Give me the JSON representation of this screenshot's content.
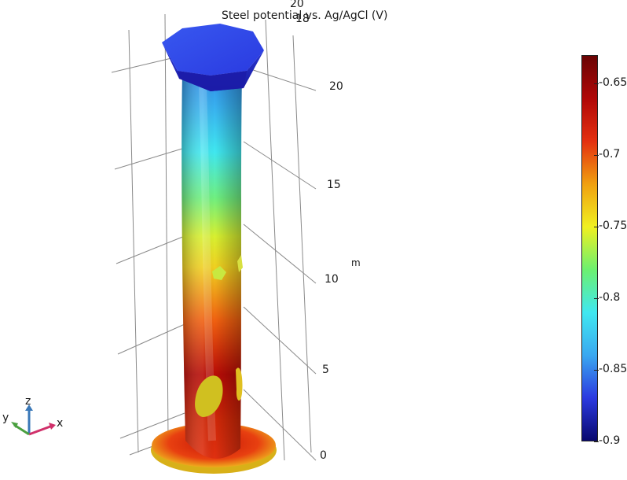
{
  "plot": {
    "title": "Steel potential vs. Ag/AgCl (V)",
    "z_axis": {
      "ticks": [
        "0",
        "5",
        "10",
        "15",
        "20"
      ],
      "unit": "m"
    },
    "top_ticks": [
      "20",
      "18"
    ]
  },
  "colorbar": {
    "min": -0.9,
    "max": -0.63,
    "ticks": [
      "-0.65",
      "-0.7",
      "-0.75",
      "-0.8",
      "-0.85",
      "-0.9"
    ],
    "colors": [
      "#08086e",
      "#2c3ae0",
      "#3aa8f0",
      "#40e8f0",
      "#6cf070",
      "#f0f020",
      "#f0a010",
      "#e43010",
      "#b00808",
      "#6a0404"
    ]
  },
  "triad": {
    "x": "x",
    "y": "y",
    "z": "z",
    "x_color": "#d0306a",
    "y_color": "#4aa040",
    "z_color": "#3a78b8"
  }
}
